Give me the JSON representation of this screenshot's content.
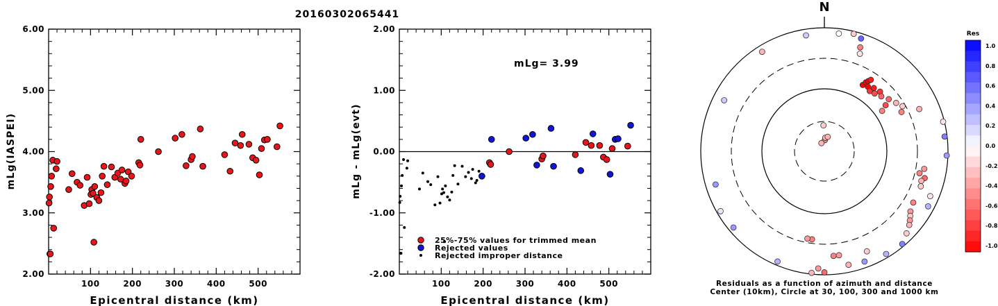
{
  "title": "20160302065441",
  "colors": {
    "accepted": "#e8161b",
    "rejected": "#0f16d8",
    "improper": "#000000",
    "res_positive": "#0000ff",
    "res_negative": "#ff0000"
  },
  "chart_data": [
    {
      "id": "left",
      "type": "scatter",
      "xlabel": "Epicentral distance (km)",
      "ylabel": "mLg(IASPEI)",
      "xlim": [
        0,
        600
      ],
      "ylim": [
        2.0,
        6.0
      ],
      "x_ticks": [
        100,
        200,
        300,
        400,
        500
      ],
      "y_ticks": [
        "2.00",
        "3.00",
        "4.00",
        "5.00",
        "6.00"
      ],
      "grid": false,
      "points": [
        [
          1,
          3.16
        ],
        [
          2,
          3.26
        ],
        [
          3,
          2.33
        ],
        [
          4,
          2.33
        ],
        [
          5,
          3.43
        ],
        [
          7,
          3.6
        ],
        [
          10,
          3.86
        ],
        [
          12,
          2.75
        ],
        [
          18,
          3.72
        ],
        [
          20,
          3.84
        ],
        [
          48,
          3.38
        ],
        [
          56,
          3.64
        ],
        [
          68,
          3.5
        ],
        [
          75,
          3.45
        ],
        [
          85,
          3.12
        ],
        [
          92,
          3.58
        ],
        [
          97,
          3.15
        ],
        [
          101,
          3.3
        ],
        [
          103,
          3.38
        ],
        [
          106,
          3.32
        ],
        [
          108,
          2.52
        ],
        [
          110,
          3.43
        ],
        [
          115,
          3.25
        ],
        [
          120,
          3.2
        ],
        [
          125,
          3.33
        ],
        [
          128,
          3.6
        ],
        [
          132,
          3.76
        ],
        [
          140,
          3.46
        ],
        [
          150,
          3.75
        ],
        [
          158,
          3.58
        ],
        [
          165,
          3.65
        ],
        [
          172,
          3.55
        ],
        [
          175,
          3.7
        ],
        [
          182,
          3.48
        ],
        [
          185,
          3.52
        ],
        [
          190,
          3.67
        ],
        [
          198,
          3.6
        ],
        [
          215,
          3.82
        ],
        [
          218,
          3.78
        ],
        [
          220,
          4.2
        ],
        [
          262,
          4.0
        ],
        [
          302,
          4.22
        ],
        [
          318,
          4.28
        ],
        [
          328,
          3.77
        ],
        [
          340,
          3.87
        ],
        [
          343,
          3.92
        ],
        [
          362,
          4.37
        ],
        [
          368,
          3.76
        ],
        [
          420,
          3.95
        ],
        [
          433,
          3.68
        ],
        [
          445,
          4.14
        ],
        [
          458,
          4.1
        ],
        [
          462,
          4.28
        ],
        [
          478,
          4.12
        ],
        [
          487,
          3.9
        ],
        [
          495,
          3.86
        ],
        [
          503,
          3.62
        ],
        [
          508,
          4.05
        ],
        [
          515,
          4.19
        ],
        [
          522,
          4.2
        ],
        [
          545,
          4.08
        ],
        [
          552,
          4.42
        ]
      ]
    },
    {
      "id": "middle",
      "type": "scatter",
      "xlabel": "Epicentral distance (km)",
      "ylabel": "mLg - mLg(evt)",
      "xlim": [
        0,
        600
      ],
      "ylim": [
        -2.0,
        2.0
      ],
      "x_ticks": [
        100,
        200,
        300,
        400,
        500
      ],
      "y_ticks": [
        "-2.00",
        "-1.00",
        "0.00",
        "1.00",
        "2.00"
      ],
      "annotation": "mLg= 3.99",
      "legend_position": "bottom-left",
      "legend": [
        {
          "label": "25%-75% values for trimmed mean",
          "kind": "accepted"
        },
        {
          "label": "Rejected values",
          "kind": "rejected"
        },
        {
          "label": "Rejected improper distance",
          "kind": "improper"
        }
      ],
      "accepted": [
        [
          215,
          -0.18
        ],
        [
          218,
          -0.21
        ],
        [
          262,
          0.0
        ],
        [
          340,
          -0.12
        ],
        [
          343,
          -0.07
        ],
        [
          420,
          -0.05
        ],
        [
          445,
          0.15
        ],
        [
          458,
          0.1
        ],
        [
          478,
          0.1
        ],
        [
          487,
          -0.09
        ],
        [
          495,
          -0.13
        ],
        [
          508,
          0.05
        ],
        [
          545,
          0.09
        ]
      ],
      "rejected": [
        [
          197,
          -0.4
        ],
        [
          220,
          0.2
        ],
        [
          302,
          0.22
        ],
        [
          318,
          0.28
        ],
        [
          328,
          -0.22
        ],
        [
          362,
          0.38
        ],
        [
          368,
          -0.24
        ],
        [
          433,
          -0.31
        ],
        [
          462,
          0.29
        ],
        [
          503,
          -0.37
        ],
        [
          515,
          0.2
        ],
        [
          522,
          0.21
        ],
        [
          552,
          0.43
        ]
      ],
      "improper": [
        [
          1,
          -0.83
        ],
        [
          2,
          -0.73
        ],
        [
          3,
          -1.66
        ],
        [
          4,
          -1.66
        ],
        [
          5,
          -0.56
        ],
        [
          7,
          -0.39
        ],
        [
          10,
          -0.13
        ],
        [
          12,
          -1.24
        ],
        [
          18,
          -0.27
        ],
        [
          20,
          -0.15
        ],
        [
          48,
          -0.61
        ],
        [
          56,
          -0.35
        ],
        [
          68,
          -0.49
        ],
        [
          75,
          -0.54
        ],
        [
          85,
          -0.87
        ],
        [
          92,
          -0.41
        ],
        [
          97,
          -0.84
        ],
        [
          101,
          -0.69
        ],
        [
          103,
          -0.61
        ],
        [
          106,
          -0.67
        ],
        [
          108,
          -1.47
        ],
        [
          110,
          -0.56
        ],
        [
          115,
          -0.74
        ],
        [
          120,
          -0.79
        ],
        [
          125,
          -0.66
        ],
        [
          128,
          -0.39
        ],
        [
          132,
          -0.23
        ],
        [
          140,
          -0.53
        ],
        [
          150,
          -0.24
        ],
        [
          158,
          -0.41
        ],
        [
          165,
          -0.34
        ],
        [
          172,
          -0.44
        ],
        [
          175,
          -0.29
        ],
        [
          182,
          -0.51
        ],
        [
          185,
          -0.47
        ],
        [
          190,
          -0.32
        ],
        [
          198,
          -0.39
        ]
      ]
    },
    {
      "id": "polar",
      "type": "scatter",
      "north_label": "N",
      "caption_line1": "Residuals as a function of azimuth and distance",
      "caption_line2": "Center (10km), Circle at 30, 100, 300 and 1000 km",
      "rings_km": [
        30,
        100,
        300,
        1000
      ],
      "points": [
        [
          2.5,
          9,
          -0.5
        ],
        [
          4,
          11,
          -0.3
        ],
        [
          13,
          12,
          -0.3
        ],
        [
          -20,
          7,
          -0.3
        ],
        [
          -2,
          21,
          -0.2
        ],
        [
          30,
          62,
          -1.0
        ],
        [
          31,
          65,
          -1.0
        ],
        [
          32,
          67,
          -1.0
        ],
        [
          33,
          69,
          -0.9
        ],
        [
          34,
          63,
          -1.0
        ],
        [
          37,
          61,
          -0.8
        ],
        [
          38,
          65,
          -0.9
        ],
        [
          41,
          62,
          -0.7
        ],
        [
          43,
          66,
          -0.8
        ],
        [
          46,
          64,
          -0.6
        ],
        [
          51,
          67,
          -0.6
        ],
        [
          53,
          62,
          -0.7
        ],
        [
          55,
          57,
          -0.5
        ],
        [
          56,
          70,
          -0.3
        ],
        [
          60,
          73,
          -0.2
        ],
        [
          63,
          70,
          -0.5
        ],
        [
          66,
          84,
          -0.3
        ],
        [
          76,
          99,
          -0.1
        ],
        [
          83,
          98,
          0.5
        ],
        [
          92,
          99,
          0.4
        ],
        [
          100,
          82,
          -0.4
        ],
        [
          103,
          79,
          -0.5
        ],
        [
          105,
          84,
          -0.6
        ],
        [
          107,
          82,
          -0.3
        ],
        [
          110,
          83,
          -0.2
        ],
        [
          113,
          93,
          -0.1
        ],
        [
          118,
          95,
          0.3
        ],
        [
          120,
          83,
          -0.5
        ],
        [
          125,
          85,
          -0.4
        ],
        [
          127,
          87,
          -0.2
        ],
        [
          129,
          89,
          -0.4
        ],
        [
          131,
          91,
          -0.3
        ],
        [
          135,
          94,
          -0.2
        ],
        [
          140,
          98,
          0.5
        ],
        [
          149,
          97,
          0.3
        ],
        [
          157,
          88,
          -0.2
        ],
        [
          160,
          95,
          0.4
        ],
        [
          168,
          94,
          -0.3
        ],
        [
          172,
          85,
          -0.4
        ],
        [
          175,
          85,
          -0.5
        ],
        [
          180,
          98,
          -0.6
        ],
        [
          183,
          95,
          -0.4
        ],
        [
          186,
          99,
          -0.3
        ],
        [
          188,
          72,
          -0.5
        ],
        [
          191,
          72,
          -0.4
        ],
        [
          203,
          97,
          0.3
        ],
        [
          230,
          96,
          0.4
        ],
        [
          240,
          97,
          0.1
        ],
        [
          253,
          92,
          0.4
        ],
        [
          297,
          91,
          0.2
        ],
        [
          328,
          95,
          -0.3
        ],
        [
          351,
          95,
          0.2
        ],
        [
          7,
          96,
          0.0
        ],
        [
          14,
          98,
          -0.2
        ],
        [
          18,
          96,
          0.6
        ],
        [
          19,
          89,
          -0.5
        ],
        [
          20,
          84,
          -0.1
        ]
      ]
    },
    {
      "id": "colorbar",
      "type": "heatmap",
      "title": "Res",
      "range": [
        -1.0,
        1.0
      ],
      "tick_labels": [
        "1.0",
        "0.8",
        "0.6",
        "0.4",
        "0.2",
        "0.0",
        "-0.2",
        "-0.4",
        "-0.6",
        "-0.8",
        "-1.0"
      ]
    }
  ]
}
